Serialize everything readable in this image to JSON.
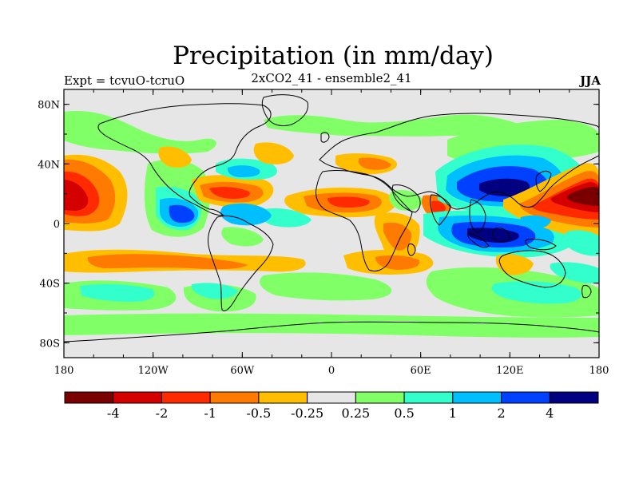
{
  "title": "Precipitation (in mm/day)",
  "subtitle_left": "Expt = tcvuO-tcruO",
  "subtitle_center": "2xCO2_41 - ensemble2_41",
  "subtitle_right": "JJA",
  "map": {
    "projection": "cylindrical-equidistant",
    "lon_range": [
      -180,
      180
    ],
    "lat_range": [
      -90,
      90
    ],
    "background_color": "#e6e6e6",
    "x_ticks": [
      {
        "value": -180,
        "label": "180"
      },
      {
        "value": -120,
        "label": "120W"
      },
      {
        "value": -60,
        "label": "60W"
      },
      {
        "value": 0,
        "label": "0"
      },
      {
        "value": 60,
        "label": "60E"
      },
      {
        "value": 120,
        "label": "120E"
      },
      {
        "value": 180,
        "label": "180"
      }
    ],
    "y_ticks": [
      {
        "value": 80,
        "label": "80N"
      },
      {
        "value": 40,
        "label": "40N"
      },
      {
        "value": 0,
        "label": "0"
      },
      {
        "value": -40,
        "label": "40S"
      },
      {
        "value": -80,
        "label": "80S"
      }
    ]
  },
  "colorbar": {
    "colors": [
      "#7a0000",
      "#d40000",
      "#ff2a00",
      "#ff7a00",
      "#ffbf00",
      "#e6e6e6",
      "#80ff66",
      "#33ffcc",
      "#00bfff",
      "#0040ff",
      "#000080"
    ],
    "labels": [
      "-4",
      "-2",
      "-1",
      "-0.5",
      "-0.25",
      "0.25",
      "0.5",
      "1",
      "2",
      "4"
    ]
  }
}
